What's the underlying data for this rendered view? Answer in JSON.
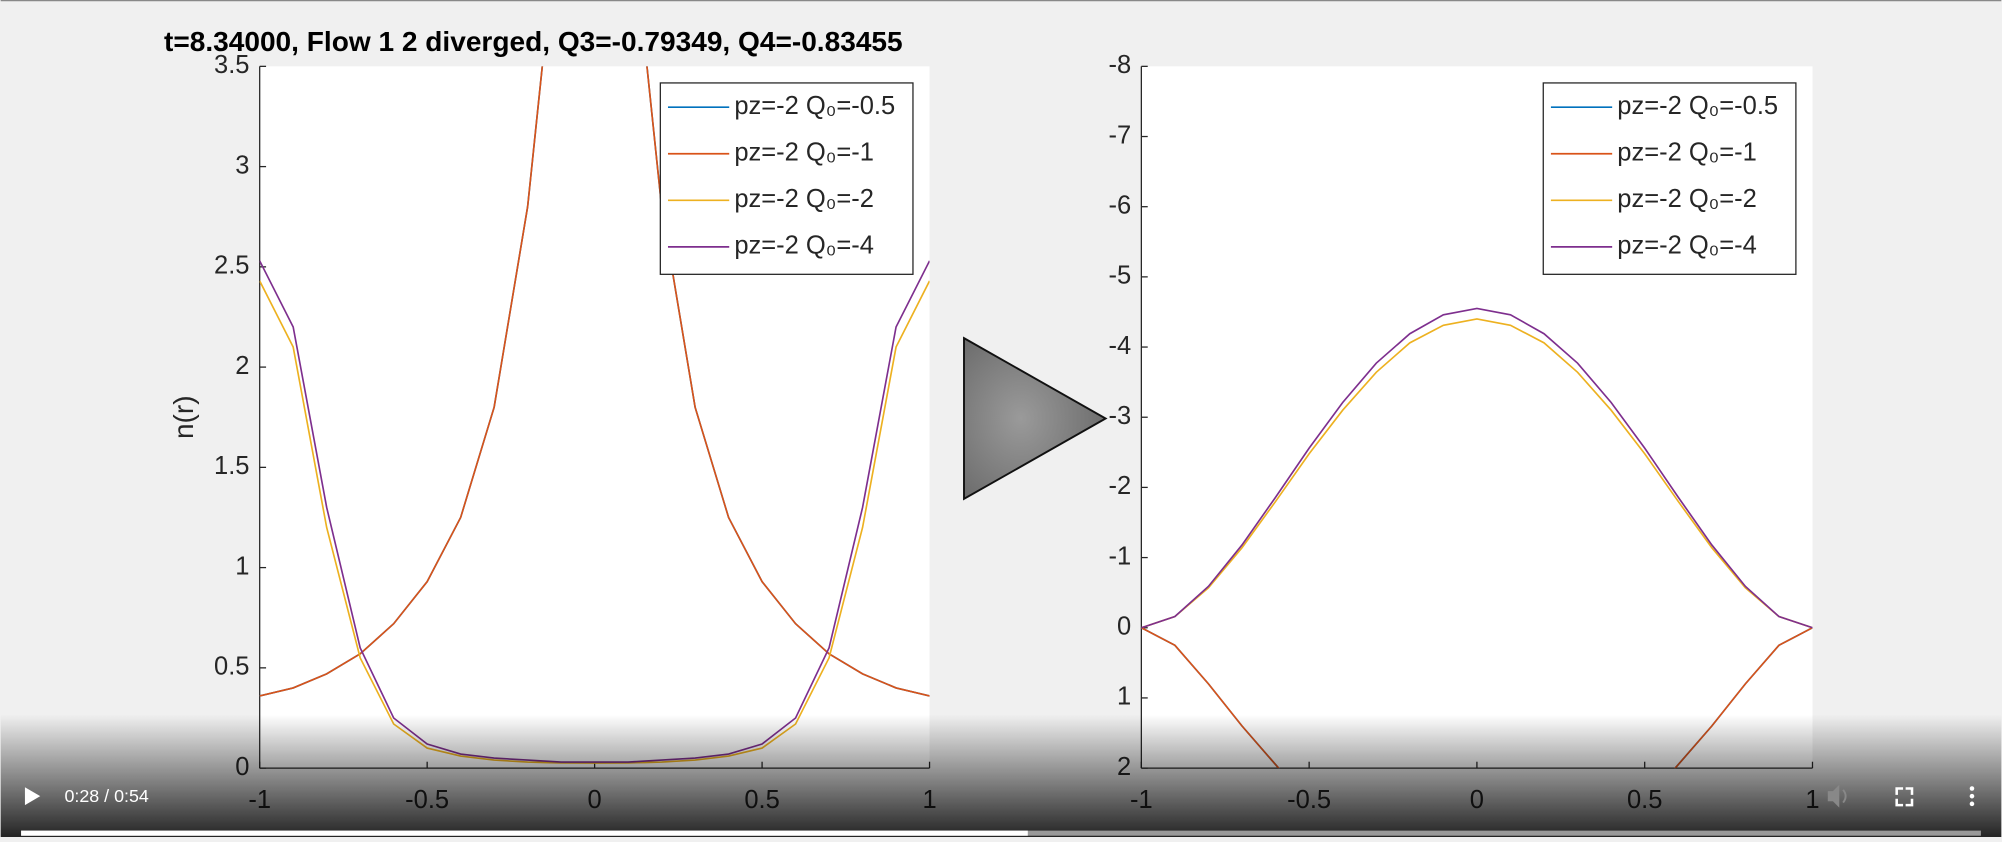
{
  "chart_data": [
    {
      "type": "line",
      "title": "t=8.34000, Flow 1 2 diverged, Q3=-0.79349, Q4=-0.83455",
      "ylabel": "n(r)",
      "x": [
        -1,
        -0.9,
        -0.8,
        -0.7,
        -0.6,
        -0.5,
        -0.4,
        -0.3,
        -0.2,
        -0.15,
        -0.1,
        0,
        0.1,
        0.15,
        0.2,
        0.3,
        0.4,
        0.5,
        0.6,
        0.7,
        0.8,
        0.9,
        1
      ],
      "series": [
        {
          "name": "pz=-2 Q₀=-0.5",
          "color": "#0072bd",
          "values": [
            0.36,
            0.4,
            0.47,
            0.57,
            0.72,
            0.93,
            1.25,
            1.8,
            2.8,
            3.6,
            5.2,
            null,
            5.2,
            3.6,
            2.8,
            1.8,
            1.25,
            0.93,
            0.72,
            0.57,
            0.47,
            0.4,
            0.36
          ]
        },
        {
          "name": "pz=-2 Q₀=-1",
          "color": "#d95319",
          "values": [
            0.36,
            0.4,
            0.47,
            0.57,
            0.72,
            0.93,
            1.25,
            1.8,
            2.8,
            3.6,
            5.2,
            null,
            5.2,
            3.6,
            2.8,
            1.8,
            1.25,
            0.93,
            0.72,
            0.57,
            0.47,
            0.4,
            0.36
          ]
        },
        {
          "name": "pz=-2 Q₀=-2",
          "color": "#edb120",
          "values": [
            2.43,
            2.1,
            1.2,
            0.55,
            0.22,
            0.1,
            0.06,
            0.04,
            0.03,
            0.028,
            0.026,
            0.025,
            0.026,
            0.028,
            0.03,
            0.04,
            0.06,
            0.1,
            0.22,
            0.55,
            1.2,
            2.1,
            2.43
          ]
        },
        {
          "name": "pz=-2 Q₀=-4",
          "color": "#7e2f8e",
          "values": [
            2.53,
            2.2,
            1.3,
            0.6,
            0.25,
            0.12,
            0.07,
            0.05,
            0.04,
            0.035,
            0.03,
            0.03,
            0.03,
            0.035,
            0.04,
            0.05,
            0.07,
            0.12,
            0.25,
            0.6,
            1.3,
            2.2,
            2.53
          ]
        }
      ],
      "xlim": [
        -1,
        1
      ],
      "ylim": [
        0,
        3.5
      ],
      "xticks": [
        -1,
        -0.5,
        0,
        0.5,
        1
      ],
      "yticks": [
        0,
        0.5,
        1,
        1.5,
        2,
        2.5,
        3,
        3.5
      ],
      "legend": "upper right"
    },
    {
      "type": "line",
      "x": [
        -1,
        -0.9,
        -0.8,
        -0.7,
        -0.6,
        -0.5,
        -0.4,
        -0.3,
        -0.2,
        -0.1,
        0,
        0.1,
        0.2,
        0.3,
        0.4,
        0.5,
        0.6,
        0.7,
        0.8,
        0.9,
        1
      ],
      "series": [
        {
          "name": "pz=-2 Q₀=-0.5",
          "color": "#0072bd",
          "values": [
            0,
            0.25,
            0.8,
            1.4,
            1.95,
            2.5,
            null,
            null,
            null,
            null,
            null,
            null,
            null,
            null,
            null,
            2.5,
            1.95,
            1.4,
            0.8,
            0.25,
            0
          ]
        },
        {
          "name": "pz=-2 Q₀=-1",
          "color": "#d95319",
          "values": [
            0,
            0.25,
            0.8,
            1.4,
            1.95,
            2.5,
            null,
            null,
            null,
            null,
            null,
            null,
            null,
            null,
            null,
            2.5,
            1.95,
            1.4,
            0.8,
            0.25,
            0
          ]
        },
        {
          "name": "pz=-2 Q₀=-2",
          "color": "#edb120",
          "values": [
            0,
            -0.16,
            -0.57,
            -1.14,
            -1.8,
            -2.48,
            -3.1,
            -3.64,
            -4.06,
            -4.31,
            -4.4,
            -4.31,
            -4.06,
            -3.64,
            -3.1,
            -2.48,
            -1.8,
            -1.14,
            -0.57,
            -0.16,
            0
          ]
        },
        {
          "name": "pz=-2 Q₀=-4",
          "color": "#7e2f8e",
          "values": [
            0,
            -0.16,
            -0.59,
            -1.18,
            -1.86,
            -2.56,
            -3.21,
            -3.77,
            -4.19,
            -4.46,
            -4.55,
            -4.46,
            -4.19,
            -3.77,
            -3.21,
            -2.56,
            -1.86,
            -1.18,
            -0.59,
            -0.16,
            0
          ]
        }
      ],
      "xlim": [
        -1,
        1
      ],
      "ylim": [
        2,
        -8
      ],
      "xticks": [
        -1,
        -0.5,
        0,
        0.5,
        1
      ],
      "yticks": [
        2,
        1,
        0,
        -1,
        -2,
        -3,
        -4,
        -5,
        -6,
        -7,
        -8
      ],
      "legend": "upper right"
    }
  ],
  "player": {
    "time": "0:28 / 0:54"
  }
}
